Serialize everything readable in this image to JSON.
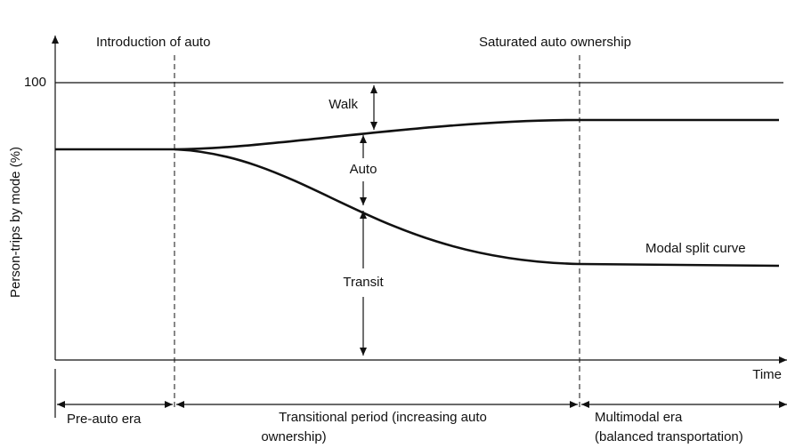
{
  "header": {
    "y_label": "Person-trips by mode (%)",
    "x_label": "Time",
    "tick": "100"
  },
  "annotations": {
    "intro": "Introduction of auto",
    "saturated": "Saturated auto ownership",
    "walk": "Walk",
    "auto": "Auto",
    "transit": "Transit",
    "curve": "Modal split curve"
  },
  "periods": {
    "pre": "Pre-auto era",
    "transitional_1": "Transitional period (increasing auto",
    "transitional_2": "ownership)",
    "multimodal_1": "Multimodal era",
    "multimodal_2": "(balanced transportation)"
  }
}
